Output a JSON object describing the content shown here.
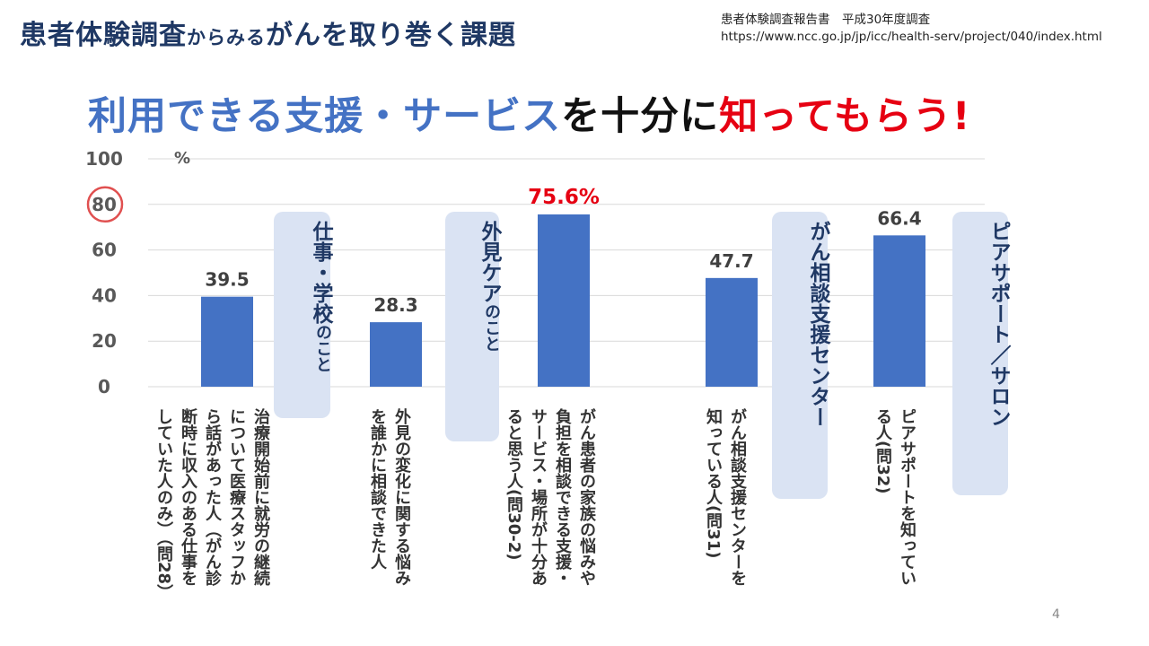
{
  "title": {
    "main": "患者体験調査",
    "small": "からみる",
    "rest": "がんを取り巻く課題"
  },
  "source": {
    "line1": "患者体験調査報告書　平成30年度調査",
    "line2": "https://www.ncc.go.jp/jp/icc/health-serv/project/040/index.html"
  },
  "headline": {
    "blue": "利用できる支援・サービス",
    "black": "を十分に",
    "red": "知ってもらう!"
  },
  "chart_data": {
    "type": "bar",
    "ylabel": "%",
    "ylim": [
      0,
      100
    ],
    "yticks": [
      0,
      20,
      40,
      60,
      80,
      100
    ],
    "highlight_tick": 80,
    "colors": {
      "bar": "#4472c4",
      "label": "#404040",
      "highlight_label": "#e60012",
      "circle": "#e05050",
      "grid": "#d9d9d9"
    },
    "categories": [
      "治療開始前に就労の継続について医療スタッフから話があった人（がん診断時に収入のある仕事をしていた人のみ）（問28）",
      "外見の変化に関する悩みを誰かに相談できた人",
      "がん患者の家族の悩みや負担を相談できる支援・サービス・場所が十分あると思う人(問30-2)",
      "がん相談支援センターを知っている人(問31)",
      "ピアサポートを知っている人(問32)"
    ],
    "values": [
      39.5,
      28.3,
      75.6,
      47.7,
      66.4
    ],
    "labels": [
      "39.5",
      "28.3",
      "75.6%",
      "47.7",
      "66.4"
    ]
  },
  "category_lines": [
    [
      "治療開始前に就労の継続",
      "について医療スタッフか",
      "ら話があった人（がん診",
      "断時に収入のある仕事を",
      "していた人のみ）（問28）"
    ],
    [
      "外見の変化に関する悩み",
      "を誰かに相談できた人"
    ],
    [
      "がん患者の家族の悩みや",
      "負担を相談できる支援・",
      "サービス・場所が十分あ",
      "ると思う人(問30-2)"
    ],
    [
      "がん相談支援センターを",
      "知っている人(問31)"
    ],
    [
      "ピアサポートを知ってい",
      "る人(問32)"
    ]
  ],
  "callouts": [
    {
      "big": "仕事・学校",
      "small": "のこと"
    },
    {
      "big": "外見ケア",
      "small": "のこと"
    },
    {
      "big": "がん相談支援センター",
      "small": ""
    },
    {
      "big": "ピアサポート／サロン",
      "small": ""
    }
  ],
  "page_number": "4"
}
